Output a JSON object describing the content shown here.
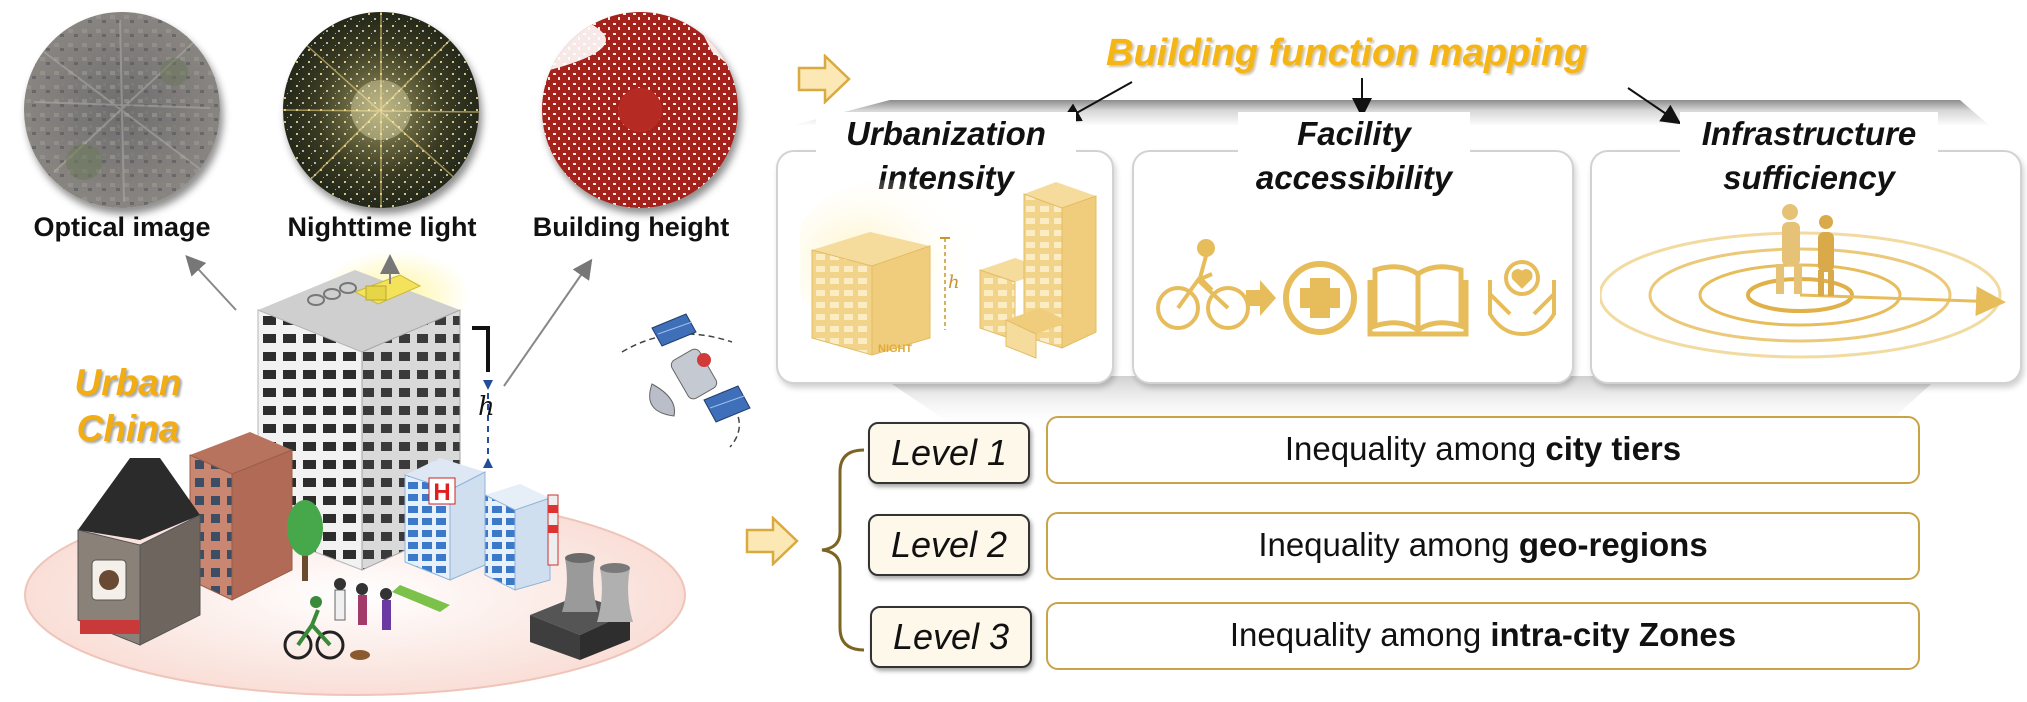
{
  "left": {
    "circles": [
      {
        "caption": "Optical image"
      },
      {
        "caption": "Nighttime light"
      },
      {
        "caption": "Building height"
      }
    ],
    "region_label_line1": "Urban",
    "region_label_line2": "China",
    "building_sign": "H",
    "height_symbol": "h"
  },
  "right": {
    "title": "Building function mapping",
    "panels": [
      {
        "line1": "Urbanization",
        "line2": "intensity",
        "icon_note": "NIGHT",
        "icon_symbol": "h"
      },
      {
        "line1": "Facility",
        "line2": "accessibility"
      },
      {
        "line1": "Infrastructure",
        "line2": "sufficiency"
      }
    ],
    "levels": [
      {
        "label": "Level 1",
        "text_prefix": "Inequality among ",
        "text_bold": "city tiers"
      },
      {
        "label": "Level 2",
        "text_prefix": "Inequality among ",
        "text_bold": "geo-regions"
      },
      {
        "label": "Level 3",
        "text_prefix": "Inequality among ",
        "text_bold": "intra-city Zones"
      }
    ]
  },
  "colors": {
    "accent": "#f5b513",
    "icon": "#e9bf5c",
    "line": "#caa248",
    "hospital": "#e02020"
  }
}
